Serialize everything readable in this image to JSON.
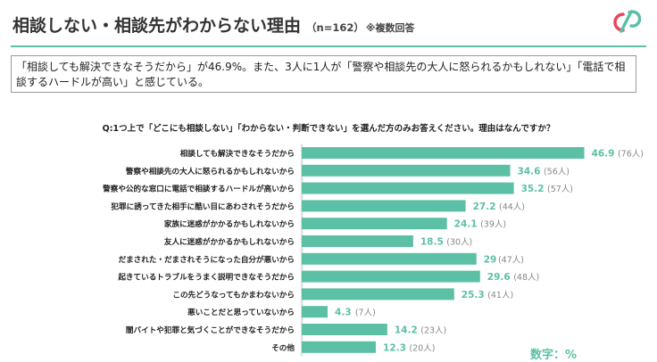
{
  "header": {
    "title": "相談しない・相談先がわからない理由",
    "count_label": "（n=162）",
    "note": "※複数回答"
  },
  "summary": {
    "text": "「相談しても解決できなそうだから」が46.9%。また、3人に1人が「警察や相談先の大人に怒られるかもしれない」「電話で相談するハードルが高い」と感じている。"
  },
  "question": "Q:1つ上で「どこにも相談しない」「わからない・判断できない」を選んだ方のみお答えください。理由はなんですか？",
  "unit_label": "数字：%",
  "colors": {
    "accent": "#5cc0a6",
    "logo_red": "#e8475a",
    "logo_teal": "#5cc0a6",
    "count_text": "#888888"
  },
  "chart_data": {
    "type": "bar",
    "orientation": "horizontal",
    "xlim": [
      0,
      50
    ],
    "categories": [
      "相談しても解決できなそうだから",
      "警察や相談先の大人に怒られるかもしれないから",
      "警察や公的な窓口に電話で相談するハードルが高いから",
      "犯罪に誘ってきた相手に酷い目にあわされそうだから",
      "家族に迷惑がかかるかもしれないから",
      "友人に迷惑がかかるかもしれないから",
      "だまされた・だまされそうになった自分が悪いから",
      "起きているトラブルをうまく説明できなそうだから",
      "この先どうなってもかまわないから",
      "悪いことだと思っていないから",
      "闇バイトや犯罪と気づくことができなそうだから",
      "その他"
    ],
    "value_labels": [
      "46.9",
      "34.6",
      "35.2",
      "27.2",
      "24.1",
      "18.5",
      "29",
      "29.6",
      "25.3",
      "4.3",
      "14.2",
      "12.3"
    ],
    "counts": [
      "(76人)",
      "(56人)",
      "(57人)",
      "(44人)",
      "(39人)",
      "(30人)",
      "(47人)",
      "(48人)",
      "(41人)",
      "(7人)",
      "(23人)",
      "(20人)"
    ]
  }
}
